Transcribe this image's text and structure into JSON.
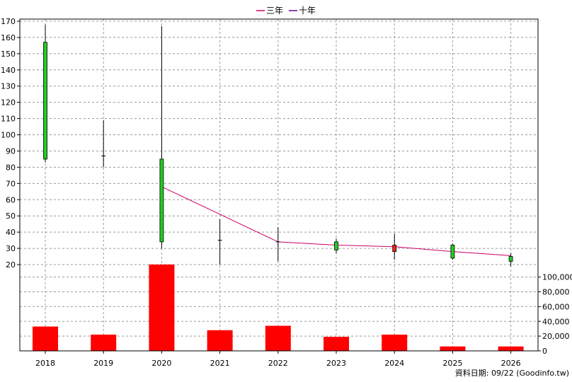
{
  "chart_data": {
    "type": "candlestick",
    "legend": {
      "placement": "top-center",
      "entries": [
        {
          "label": "三年",
          "color": "#cc0066"
        },
        {
          "label": "十年",
          "color": "#660099"
        }
      ]
    },
    "source_note": "資料日期: 09/22  (Goodinfo.tw)",
    "categories": [
      "2018",
      "2019",
      "2020",
      "2021",
      "2022",
      "2023",
      "2024",
      "2025",
      "2026"
    ],
    "price_axis": {
      "ylim": [
        20,
        170
      ],
      "ticks": [
        20,
        30,
        40,
        50,
        60,
        70,
        80,
        90,
        100,
        110,
        120,
        130,
        140,
        150,
        160,
        170
      ]
    },
    "volume_axis": {
      "ylim": [
        0,
        115000
      ],
      "ticks": [
        0,
        20000,
        40000,
        60000,
        80000,
        100000
      ],
      "tick_labels": [
        "0",
        "20,000",
        "40,000",
        "60,000",
        "80,000",
        "100,000"
      ]
    },
    "candles": [
      {
        "x": "2018",
        "open": 85,
        "high": 168,
        "low": 83,
        "close": 157
      },
      {
        "x": "2019",
        "open": 87,
        "high": 109,
        "low": 80,
        "close": 87
      },
      {
        "x": "2020",
        "open": 34,
        "high": 167,
        "low": 30,
        "close": 85
      },
      {
        "x": "2021",
        "open": 35,
        "high": 48,
        "low": 20,
        "close": 35
      },
      {
        "x": "2022",
        "open": 34,
        "high": 43,
        "low": 22,
        "close": 34
      },
      {
        "x": "2023",
        "open": 29,
        "high": 36,
        "low": 27,
        "close": 34
      },
      {
        "x": "2024",
        "open": 32,
        "high": 39,
        "low": 23,
        "close": 28
      },
      {
        "x": "2025",
        "open": 24,
        "high": 33,
        "low": 23,
        "close": 32
      },
      {
        "x": "2026",
        "open": 22,
        "high": 27,
        "low": 19,
        "close": 25
      }
    ],
    "series": [
      {
        "name": "三年",
        "color": "#cc0066",
        "points": [
          {
            "x": "2020",
            "y": 68
          },
          {
            "x": "2021",
            "y": 51
          },
          {
            "x": "2022",
            "y": 34
          },
          {
            "x": "2023",
            "y": 32
          },
          {
            "x": "2024",
            "y": 31
          },
          {
            "x": "2025",
            "y": 28
          },
          {
            "x": "2026",
            "y": 25.5
          }
        ]
      }
    ],
    "volume": {
      "color": "#ff0000",
      "values": [
        33000,
        22000,
        117000,
        28000,
        34000,
        19000,
        22000,
        6000,
        6000
      ]
    },
    "grid": true
  },
  "colors": {
    "up_candle": "#22cc22",
    "down_candle": "#ee2222",
    "grid": "#999999",
    "axis": "#000000"
  }
}
